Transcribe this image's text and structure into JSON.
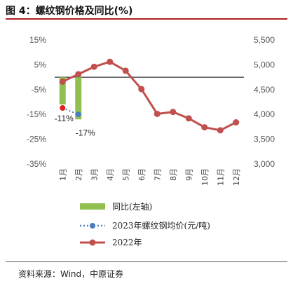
{
  "figure_title": "图 4：螺纹钢价格及同比(%)",
  "source": "资料来源：Wind，中原证券",
  "colors": {
    "bar": "#92c050",
    "line_2023": "#4a7ebb",
    "line_2022": "#c0504d",
    "title_rule": "#b2201f"
  },
  "chart_data": {
    "type": "bar+line",
    "categories": [
      "1月",
      "2月",
      "3月",
      "4月",
      "5月",
      "6月",
      "7月",
      "8月",
      "9月",
      "10月",
      "11月",
      "12月"
    ],
    "y_left": {
      "min": -35,
      "max": 15,
      "ticks": [
        "15%",
        "5%",
        "-5%",
        "-15%",
        "-25%",
        "-35%"
      ],
      "tick_values": [
        15,
        5,
        -5,
        -15,
        -25,
        -35
      ]
    },
    "y_right": {
      "min": 3000,
      "max": 5500,
      "ticks": [
        "5,500",
        "5,000",
        "4,500",
        "4,000",
        "3,500",
        "3,000"
      ],
      "tick_values": [
        5500,
        5000,
        4500,
        4000,
        3500,
        3000
      ]
    },
    "series": [
      {
        "name": "同比(左轴)",
        "type": "bar",
        "axis": "left",
        "values": [
          -11,
          -17,
          null,
          null,
          null,
          null,
          null,
          null,
          null,
          null,
          null,
          null
        ],
        "data_labels": [
          "-11%",
          "-17%"
        ]
      },
      {
        "name": "2023年螺纹钢均价(元/吨)",
        "type": "line",
        "axis": "right",
        "style": "dotted",
        "values": [
          4130,
          4000,
          null,
          null,
          null,
          null,
          null,
          null,
          null,
          null,
          null,
          null
        ]
      },
      {
        "name": "2022年",
        "type": "line",
        "axis": "right",
        "values": [
          4660,
          4810,
          4960,
          5060,
          4880,
          4510,
          4010,
          4050,
          3920,
          3740,
          3680,
          3840
        ]
      }
    ],
    "zero_line": true,
    "legend_position": "bottom"
  }
}
